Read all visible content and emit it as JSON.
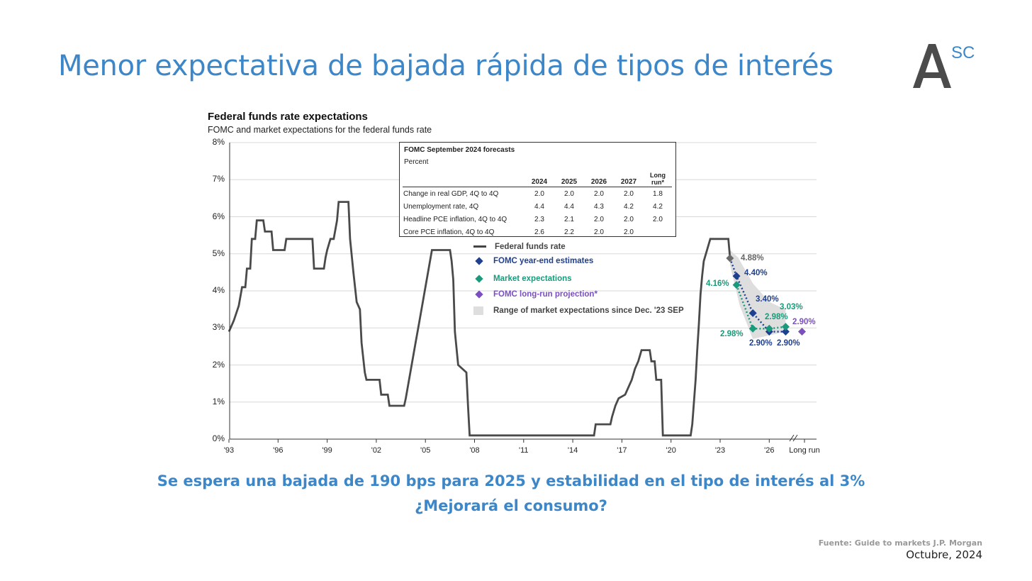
{
  "slide": {
    "title": "Menor expectativa de bajada rápida de tipos de interés",
    "caption_line1": "Se espera una bajada de 190 bps para 2025 y estabilidad en el tipo de interés al 3%",
    "caption_line2": "¿Mejorará el consumo?",
    "source": "Fuente: Guide to markets J.P. Morgan",
    "date": "Octubre, 2024",
    "logo_text": "SC",
    "accent_color": "#3d87c8"
  },
  "chart_data": {
    "type": "line",
    "title": "Federal funds rate expectations",
    "subtitle": "FOMC and market expectations for the federal funds rate",
    "ylim": [
      0,
      8
    ],
    "yticks": [
      "0%",
      "1%",
      "2%",
      "3%",
      "4%",
      "5%",
      "6%",
      "7%",
      "8%"
    ],
    "xticks": [
      "'93",
      "'96",
      "'99",
      "'02",
      "'05",
      "'08",
      "'11",
      "'14",
      "'17",
      "'20",
      "'23",
      "'26",
      "Long run"
    ],
    "xlim": [
      1993,
      2029
    ],
    "grid": true,
    "series": [
      {
        "name": "Federal funds rate",
        "color": "#4a4a4a",
        "points": [
          [
            1993.0,
            2.9
          ],
          [
            1993.3,
            3.2
          ],
          [
            1993.6,
            3.6
          ],
          [
            1993.8,
            4.1
          ],
          [
            1994.0,
            4.1
          ],
          [
            1994.1,
            4.6
          ],
          [
            1994.3,
            4.6
          ],
          [
            1994.4,
            5.4
          ],
          [
            1994.6,
            5.4
          ],
          [
            1994.7,
            5.9
          ],
          [
            1995.1,
            5.9
          ],
          [
            1995.2,
            5.6
          ],
          [
            1995.6,
            5.6
          ],
          [
            1995.7,
            5.1
          ],
          [
            1996.0,
            5.1
          ],
          [
            1996.4,
            5.1
          ],
          [
            1996.5,
            5.4
          ],
          [
            1997.0,
            5.4
          ],
          [
            1997.5,
            5.4
          ],
          [
            1997.9,
            5.4
          ],
          [
            1998.1,
            5.4
          ],
          [
            1998.2,
            4.6
          ],
          [
            1998.8,
            4.6
          ],
          [
            1998.9,
            4.9
          ],
          [
            1999.0,
            5.1
          ],
          [
            1999.2,
            5.4
          ],
          [
            1999.4,
            5.4
          ],
          [
            1999.6,
            5.9
          ],
          [
            1999.7,
            6.4
          ],
          [
            2000.3,
            6.4
          ],
          [
            2000.4,
            5.4
          ],
          [
            2000.6,
            4.5
          ],
          [
            2000.8,
            3.7
          ],
          [
            2001.0,
            3.5
          ],
          [
            2001.1,
            2.6
          ],
          [
            2001.3,
            1.8
          ],
          [
            2001.4,
            1.6
          ],
          [
            2002.2,
            1.6
          ],
          [
            2002.3,
            1.2
          ],
          [
            2002.7,
            1.2
          ],
          [
            2002.8,
            0.9
          ],
          [
            2003.7,
            0.9
          ],
          [
            2003.8,
            1.1
          ],
          [
            2004.0,
            1.6
          ],
          [
            2004.2,
            2.1
          ],
          [
            2004.4,
            2.6
          ],
          [
            2004.6,
            3.1
          ],
          [
            2004.8,
            3.6
          ],
          [
            2005.0,
            4.1
          ],
          [
            2005.2,
            4.6
          ],
          [
            2005.4,
            5.1
          ],
          [
            2006.5,
            5.1
          ],
          [
            2006.6,
            4.8
          ],
          [
            2006.7,
            4.3
          ],
          [
            2006.8,
            2.9
          ],
          [
            2007.0,
            2.0
          ],
          [
            2007.5,
            1.8
          ],
          [
            2007.6,
            0.9
          ],
          [
            2007.7,
            0.1
          ],
          [
            2015.3,
            0.1
          ],
          [
            2015.4,
            0.4
          ],
          [
            2016.3,
            0.4
          ],
          [
            2016.4,
            0.6
          ],
          [
            2016.6,
            0.9
          ],
          [
            2016.8,
            1.1
          ],
          [
            2017.2,
            1.2
          ],
          [
            2017.4,
            1.4
          ],
          [
            2017.6,
            1.6
          ],
          [
            2017.8,
            1.9
          ],
          [
            2018.0,
            2.1
          ],
          [
            2018.2,
            2.4
          ],
          [
            2018.7,
            2.4
          ],
          [
            2018.8,
            2.1
          ],
          [
            2019.0,
            2.1
          ],
          [
            2019.1,
            1.6
          ],
          [
            2019.4,
            1.6
          ],
          [
            2019.5,
            0.1
          ],
          [
            2021.2,
            0.1
          ],
          [
            2021.3,
            0.4
          ],
          [
            2021.5,
            1.6
          ],
          [
            2021.6,
            2.4
          ],
          [
            2021.7,
            3.1
          ],
          [
            2021.8,
            3.9
          ],
          [
            2021.9,
            4.4
          ],
          [
            2022.0,
            4.8
          ],
          [
            2022.2,
            5.1
          ],
          [
            2022.4,
            5.4
          ],
          [
            2023.5,
            5.4
          ],
          [
            2023.6,
            4.9
          ]
        ]
      },
      {
        "name": "FOMC year-end estimates",
        "color": "#1f3f8f",
        "points": [
          [
            2023.6,
            4.88
          ],
          [
            2024.0,
            4.4
          ],
          [
            2025.0,
            3.4
          ],
          [
            2026.0,
            2.9
          ],
          [
            2027.0,
            2.9
          ]
        ],
        "labels": [
          "4.88%",
          "4.40%",
          "3.40%",
          "2.90%",
          "2.90%"
        ]
      },
      {
        "name": "Market expectations",
        "color": "#1a9a7a",
        "points": [
          [
            2024.0,
            4.16
          ],
          [
            2025.0,
            2.98
          ],
          [
            2026.0,
            2.98
          ],
          [
            2027.0,
            3.03
          ]
        ],
        "labels": [
          "4.16%",
          "2.98%",
          "2.98%",
          "3.03%"
        ]
      },
      {
        "name": "FOMC long-run projection*",
        "color": "#7b4fc0",
        "points": [
          [
            2028.0,
            2.9
          ]
        ],
        "labels": [
          "2.90%"
        ]
      }
    ],
    "range_series": {
      "name": "Range of market expectations since Dec. '23 SEP",
      "color": "#dedede",
      "points": [
        [
          2023.6,
          5.1
        ],
        [
          2024.1,
          4.9
        ],
        [
          2025.0,
          4.2
        ],
        [
          2026.0,
          3.7
        ],
        [
          2027.0,
          3.5
        ],
        [
          2027.0,
          2.9
        ],
        [
          2026.0,
          2.8
        ],
        [
          2025.0,
          2.7
        ],
        [
          2024.2,
          3.6
        ],
        [
          2023.6,
          4.7
        ]
      ]
    },
    "legend_position": "center",
    "fomc_table": {
      "title": "FOMC September 2024 forecasts",
      "subtitle": "Percent",
      "columns": [
        "2024",
        "2025",
        "2026",
        "2027",
        "Long run*"
      ],
      "rows": [
        {
          "label": "Change in real GDP, 4Q to 4Q",
          "values": [
            "2.0",
            "2.0",
            "2.0",
            "2.0",
            "1.8"
          ]
        },
        {
          "label": "Unemployment rate, 4Q",
          "values": [
            "4.4",
            "4.4",
            "4.3",
            "4.2",
            "4.2"
          ]
        },
        {
          "label": "Headline PCE inflation, 4Q to 4Q",
          "values": [
            "2.3",
            "2.1",
            "2.0",
            "2.0",
            "2.0"
          ]
        },
        {
          "label": "Core PCE inflation, 4Q to 4Q",
          "values": [
            "2.6",
            "2.2",
            "2.0",
            "2.0",
            ""
          ]
        }
      ]
    }
  }
}
